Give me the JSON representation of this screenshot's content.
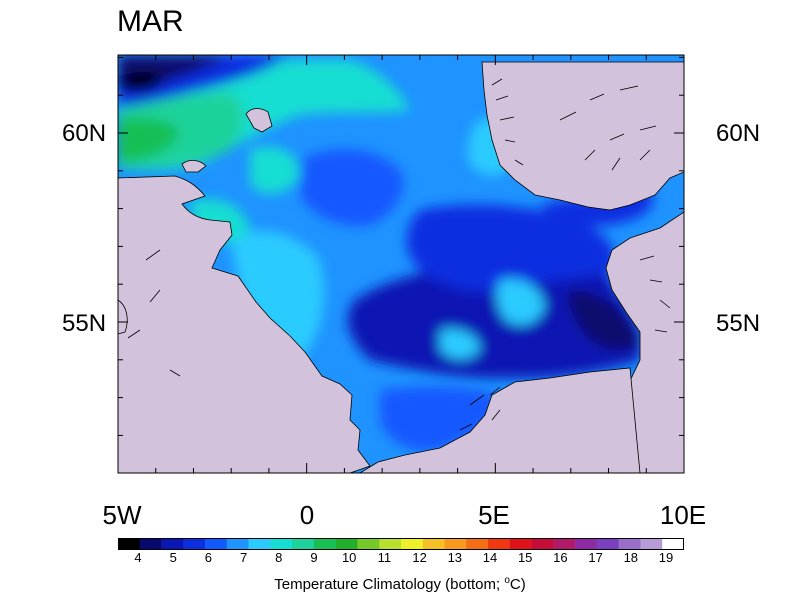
{
  "title": "MAR",
  "lat_labels": [
    "60N",
    "55N"
  ],
  "lon_labels": [
    "5W",
    "0",
    "5E",
    "10E"
  ],
  "colorbar": {
    "ticks": [
      "4",
      "5",
      "6",
      "7",
      "8",
      "9",
      "10",
      "11",
      "12",
      "13",
      "14",
      "15",
      "16",
      "17",
      "18",
      "19"
    ],
    "colors": [
      "#000000",
      "#08086e",
      "#0a17b3",
      "#0c2ee0",
      "#1259ff",
      "#1f93ff",
      "#2acbff",
      "#16ded2",
      "#1dd29b",
      "#19bf55",
      "#22af2b",
      "#76c92b",
      "#b8e02c",
      "#f0f02a",
      "#f5c023",
      "#f79a1d",
      "#f56d17",
      "#f03814",
      "#e2121a",
      "#c80c3a",
      "#b01a68",
      "#8f2aa5",
      "#7b3fbf",
      "#9a6fc9",
      "#b89ad6",
      "#ffffff"
    ],
    "title_prefix": "Temperature Climatology (bottom; ",
    "title_unit": "C)",
    "title_degree": "o"
  },
  "colors": {
    "land": "#d3c2db",
    "coast": "#000000",
    "sea_deep_cold": "#0c1a8f",
    "sea_cold": "#0c2ee0",
    "sea_mid": "#1259ff",
    "sea_light": "#1f93ff",
    "sea_cyan": "#2acbff",
    "sea_teal": "#16ded2",
    "sea_green": "#1dd29b",
    "sea_darkgreen": "#19bf55"
  }
}
